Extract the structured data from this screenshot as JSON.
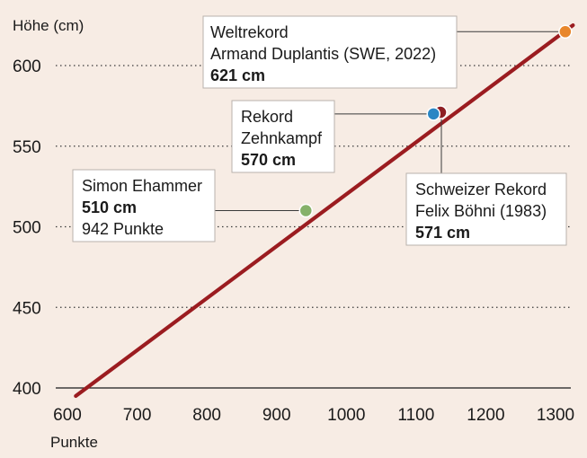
{
  "chart_data": {
    "type": "line",
    "xlabel": "Punkte",
    "ylabel": "Höhe (cm)",
    "xlim": [
      600,
      1320
    ],
    "ylim": [
      395,
      625
    ],
    "x_ticks": [
      600,
      700,
      800,
      900,
      1000,
      1100,
      1200,
      1300
    ],
    "y_ticks": [
      400,
      450,
      500,
      550,
      600
    ],
    "grid": "horizontal dotted",
    "series": [
      {
        "color": "#9b1c20",
        "x": [
          612,
          1325
        ],
        "y": [
          395,
          625
        ]
      }
    ],
    "highlights": [
      {
        "key": "weltrekord",
        "x": 1314,
        "y": 621,
        "color": "#e8862b",
        "lines": [
          "Weltrekord",
          "Armand Duplantis (SWE, 2022)"
        ],
        "value": "621 cm",
        "extra": ""
      },
      {
        "key": "zehnkampf",
        "x": 1125,
        "y": 570,
        "color": "#2a86c4",
        "lines": [
          "Rekord",
          "Zehnkampf"
        ],
        "value": "570 cm",
        "extra": ""
      },
      {
        "key": "schweiz",
        "x": 1135,
        "y": 571,
        "color": "#8e1e22",
        "lines": [
          "Schweizer Rekord",
          "Felix Böhni (1983)"
        ],
        "value": "571 cm",
        "extra": ""
      },
      {
        "key": "ehammer",
        "x": 942,
        "y": 510,
        "color": "#86b16a",
        "lines": [
          "Simon Ehammer"
        ],
        "value": "510 cm",
        "extra": "942 Punkte"
      }
    ]
  }
}
